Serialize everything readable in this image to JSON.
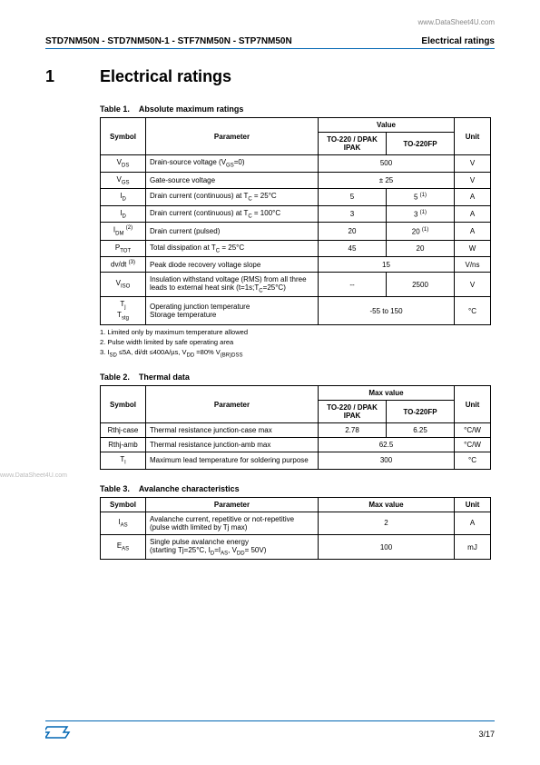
{
  "top_url": "www.DataSheet4U.com",
  "header": {
    "parts": "STD7NM50N - STD7NM50N-1 - STF7NM50N - STP7NM50N",
    "section": "Electrical ratings"
  },
  "heading": {
    "num": "1",
    "title": "Electrical ratings"
  },
  "table1": {
    "caption_label": "Table 1.",
    "caption_title": "Absolute maximum ratings",
    "headers": {
      "symbol": "Symbol",
      "parameter": "Parameter",
      "value": "Value",
      "col1": "TO-220 / DPAK IPAK",
      "col2": "TO-220FP",
      "unit": "Unit"
    },
    "rows": [
      {
        "sym": "V<sub>DS</sub>",
        "param": "Drain-source voltage (V<sub>GS</sub>=0)",
        "v1": "500",
        "span": true,
        "unit": "V"
      },
      {
        "sym": "V<sub>GS</sub>",
        "param": "Gate-source voltage",
        "v1": "± 25",
        "span": true,
        "unit": "V"
      },
      {
        "sym": "I<sub>D</sub>",
        "param": "Drain current (continuous) at T<sub>C</sub> = 25°C",
        "v1": "5",
        "v2": "5 <sup>(1)</sup>",
        "unit": "A"
      },
      {
        "sym": "I<sub>D</sub>",
        "param": "Drain current (continuous) at T<sub>C</sub> = 100°C",
        "v1": "3",
        "v2": "3 <sup>(1)</sup>",
        "unit": "A"
      },
      {
        "sym": "I<sub>DM</sub> <sup>(2)</sup>",
        "param": "Drain current (pulsed)",
        "v1": "20",
        "v2": "20 <sup>(1)</sup>",
        "unit": "A"
      },
      {
        "sym": "P<sub>TOT</sub>",
        "param": "Total dissipation at T<sub>C</sub> = 25°C",
        "v1": "45",
        "v2": "20",
        "unit": "W"
      },
      {
        "sym": "dv/dt <sup>(3)</sup>",
        "param": "Peak diode recovery voltage slope",
        "v1": "15",
        "span": true,
        "unit": "V/ns"
      },
      {
        "sym": "V<sub>ISO</sub>",
        "param": "Insulation withstand voltage (RMS) from all three leads to external heat sink (t=1s;T<sub>C</sub>=25°C)",
        "v1": "--",
        "v2": "2500",
        "unit": "V"
      },
      {
        "sym": "T<sub>j</sub><br>T<sub>stg</sub>",
        "param": "Operating junction temperature<br>Storage temperature",
        "v1": "-55 to 150",
        "span": true,
        "unit": "°C"
      }
    ],
    "notes": [
      "1.  Limited only by maximum temperature allowed",
      "2.  Pulse width limited by safe operating area",
      "3.  I<sub>SD</sub> ≤5A, di/dt ≤400A/µs, V<sub>DD</sub> =80% V<sub>(BR)DSS</sub>"
    ]
  },
  "table2": {
    "caption_label": "Table 2.",
    "caption_title": "Thermal data",
    "headers": {
      "symbol": "Symbol",
      "parameter": "Parameter",
      "value": "Max value",
      "col1": "TO-220 / DPAK IPAK",
      "col2": "TO-220FP",
      "unit": "Unit"
    },
    "rows": [
      {
        "sym": "Rthj-case",
        "param": "Thermal resistance junction-case max",
        "v1": "2.78",
        "v2": "6.25",
        "unit": "°C/W"
      },
      {
        "sym": "Rthj-amb",
        "param": "Thermal resistance junction-amb max",
        "v1": "62.5",
        "span": true,
        "unit": "°C/W"
      },
      {
        "sym": "T<sub>l</sub>",
        "param": "Maximum lead temperature for soldering purpose",
        "v1": "300",
        "span": true,
        "unit": "°C"
      }
    ]
  },
  "table3": {
    "caption_label": "Table 3.",
    "caption_title": "Avalanche characteristics",
    "headers": {
      "symbol": "Symbol",
      "parameter": "Parameter",
      "value": "Max value",
      "unit": "Unit"
    },
    "rows": [
      {
        "sym": "I<sub>AS</sub>",
        "param": "Avalanche current, repetitive or not-repetitive (pulse width limited by Tj max)",
        "v1": "2",
        "unit": "A"
      },
      {
        "sym": "E<sub>AS</sub>",
        "param": "Single pulse avalanche energy<br>(starting Tj=25°C, I<sub>D</sub>=I<sub>AS</sub>, V<sub>DD</sub>= 50V)",
        "v1": "100",
        "unit": "mJ"
      }
    ]
  },
  "side_watermark": "www.DataSheet4U.com",
  "footer": {
    "logo": "",
    "page": "3/17"
  },
  "colors": {
    "accent": "#0066b3",
    "gray": "#888"
  }
}
